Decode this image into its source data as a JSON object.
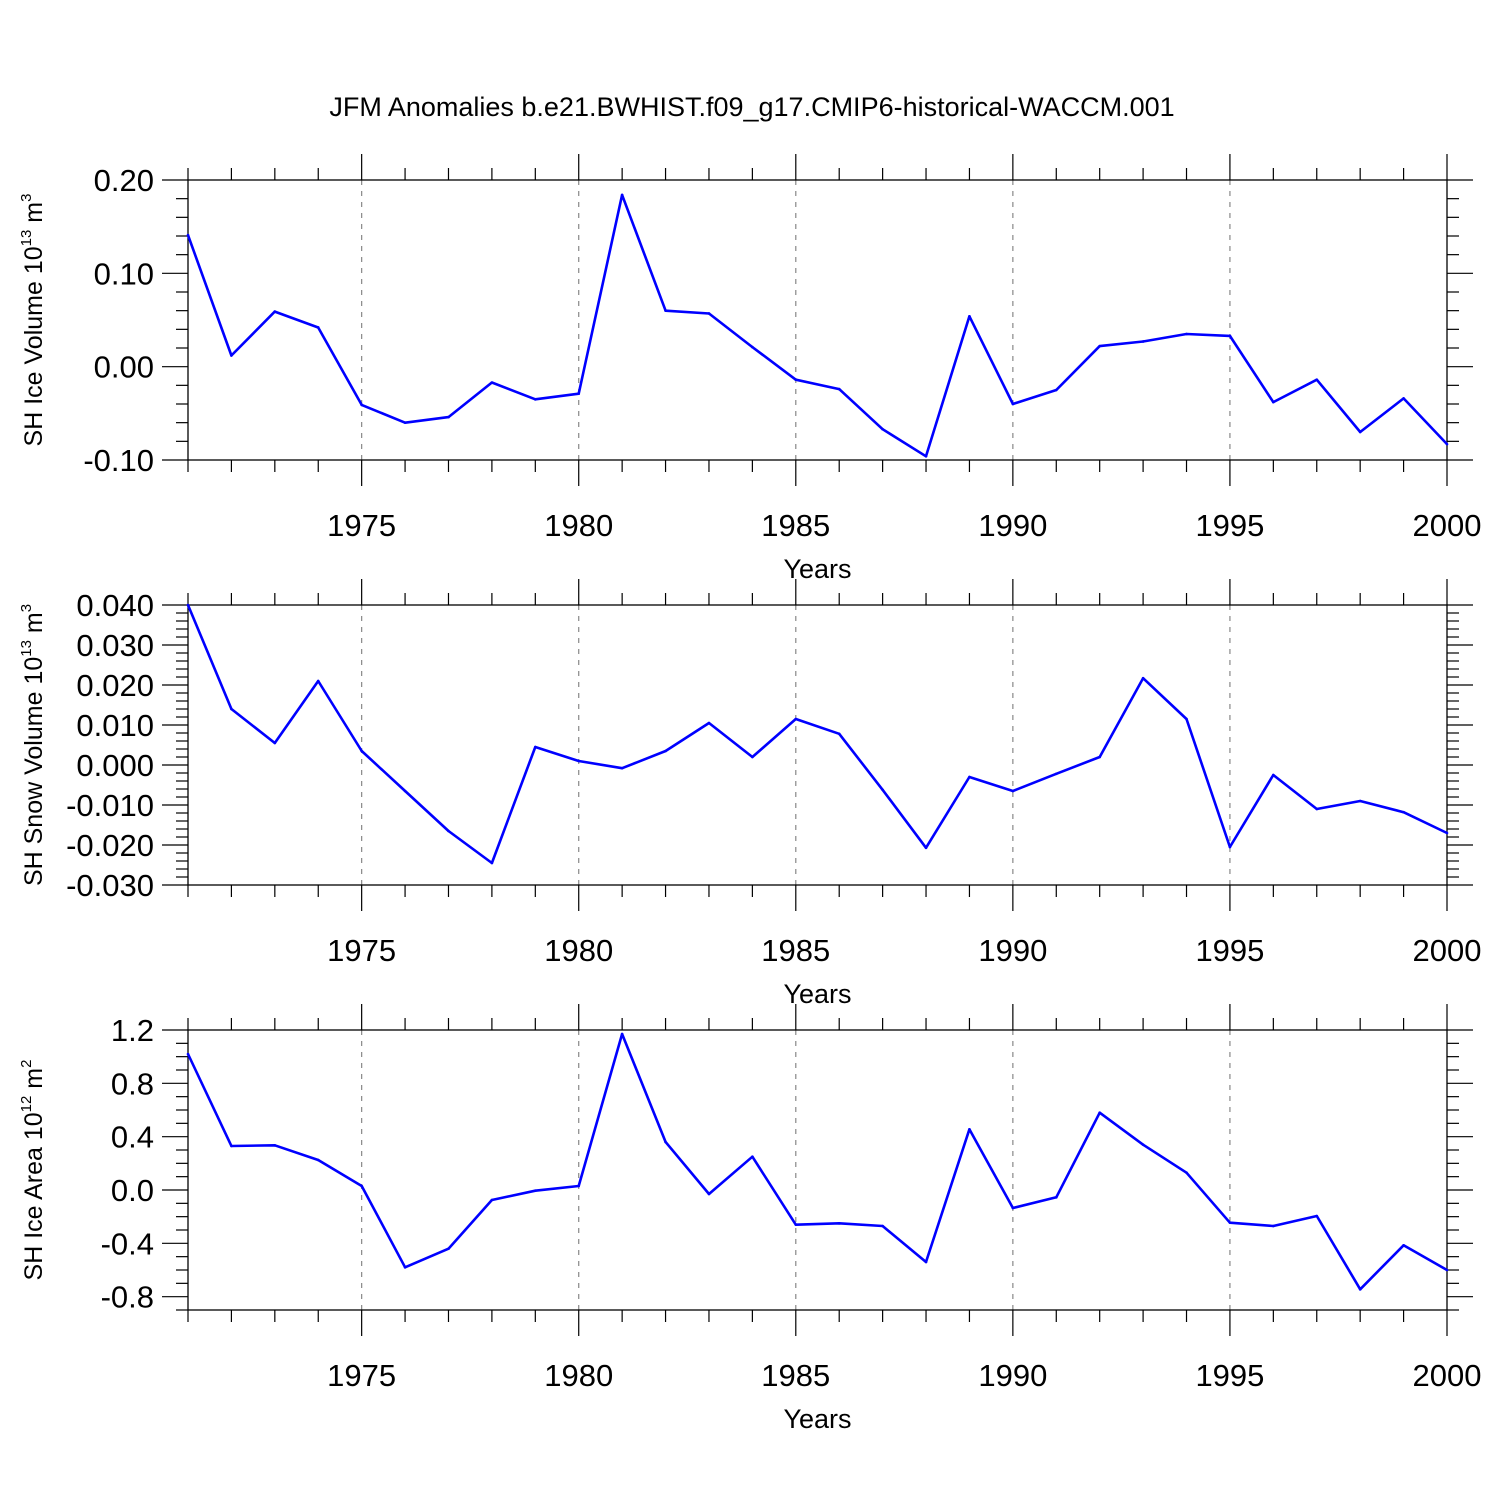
{
  "title": "JFM Anomalies b.e21.BWHIST.f09_g17.CMIP6-historical-WACCM.001",
  "colors": {
    "series": "#0000ff",
    "axis": "#000000",
    "grid": "#888888"
  },
  "chart_data": [
    {
      "type": "line",
      "name": "sh-ice-volume",
      "ylabel": {
        "prefix": "SH Ice Volume 10",
        "exp": "13",
        "unit": " m",
        "unit_exp": "3"
      },
      "xlabel": "Years",
      "xlim": [
        1971,
        2000
      ],
      "xticks": [
        1975,
        1980,
        1985,
        1990,
        1995,
        2000
      ],
      "xtick_labels": [
        "1975",
        "1980",
        "1985",
        "1990",
        "1995",
        "2000"
      ],
      "ylim": [
        -0.1,
        0.2
      ],
      "yticks": [
        -0.1,
        0.0,
        0.1,
        0.2
      ],
      "ytick_labels": [
        "-0.10",
        "0.00",
        "0.10",
        "0.20"
      ],
      "y_minor_step": 0.02,
      "x": [
        1971,
        1972,
        1973,
        1974,
        1975,
        1976,
        1977,
        1978,
        1979,
        1980,
        1981,
        1982,
        1983,
        1984,
        1985,
        1986,
        1987,
        1988,
        1989,
        1990,
        1991,
        1992,
        1993,
        1994,
        1995,
        1996,
        1997,
        1998,
        1999,
        2000
      ],
      "y": [
        0.141,
        0.012,
        0.059,
        0.042,
        -0.041,
        -0.06,
        -0.054,
        -0.017,
        -0.035,
        -0.029,
        0.184,
        0.06,
        0.057,
        0.021,
        -0.014,
        -0.024,
        -0.067,
        -0.096,
        0.054,
        -0.04,
        -0.025,
        0.022,
        0.027,
        0.035,
        0.033,
        -0.038,
        -0.014,
        -0.07,
        -0.034,
        -0.083
      ]
    },
    {
      "type": "line",
      "name": "sh-snow-volume",
      "ylabel": {
        "prefix": "SH Snow Volume 10",
        "exp": "13",
        "unit": " m",
        "unit_exp": "3"
      },
      "xlabel": "Years",
      "xlim": [
        1971,
        2000
      ],
      "xticks": [
        1975,
        1980,
        1985,
        1990,
        1995,
        2000
      ],
      "xtick_labels": [
        "1975",
        "1980",
        "1985",
        "1990",
        "1995",
        "2000"
      ],
      "ylim": [
        -0.03,
        0.04
      ],
      "yticks": [
        -0.03,
        -0.02,
        -0.01,
        0.0,
        0.01,
        0.02,
        0.03,
        0.04
      ],
      "ytick_labels": [
        "-0.030",
        "-0.020",
        "-0.010",
        "0.000",
        "0.010",
        "0.020",
        "0.030",
        "0.040"
      ],
      "y_minor_step": 0.002,
      "x": [
        1971,
        1972,
        1973,
        1974,
        1975,
        1976,
        1977,
        1978,
        1979,
        1980,
        1981,
        1982,
        1983,
        1984,
        1985,
        1986,
        1987,
        1988,
        1989,
        1990,
        1991,
        1992,
        1993,
        1994,
        1995,
        1996,
        1997,
        1998,
        1999,
        2000
      ],
      "y": [
        0.04,
        0.014,
        0.0055,
        0.021,
        0.0035,
        -0.0065,
        -0.0165,
        -0.0245,
        0.0045,
        0.001,
        -0.0008,
        0.0035,
        0.0105,
        0.002,
        0.0115,
        0.0078,
        -0.0062,
        -0.0207,
        -0.003,
        -0.0065,
        -0.0022,
        0.002,
        0.0217,
        0.0115,
        -0.0205,
        -0.0025,
        -0.011,
        -0.009,
        -0.0118,
        -0.017
      ]
    },
    {
      "type": "line",
      "name": "sh-ice-area",
      "ylabel": {
        "prefix": "SH Ice Area 10",
        "exp": "12",
        "unit": " m",
        "unit_exp": "2"
      },
      "xlabel": "Years",
      "xlim": [
        1971,
        2000
      ],
      "xticks": [
        1975,
        1980,
        1985,
        1990,
        1995,
        2000
      ],
      "xtick_labels": [
        "1975",
        "1980",
        "1985",
        "1990",
        "1995",
        "2000"
      ],
      "ylim": [
        -0.9,
        1.2
      ],
      "yticks": [
        -0.8,
        -0.4,
        0.0,
        0.4,
        0.8,
        1.2
      ],
      "ytick_labels": [
        "-0.8",
        "-0.4",
        "0.0",
        "0.4",
        "0.8",
        "1.2"
      ],
      "y_minor_step": 0.1,
      "x": [
        1971,
        1972,
        1973,
        1974,
        1975,
        1976,
        1977,
        1978,
        1979,
        1980,
        1981,
        1982,
        1983,
        1984,
        1985,
        1986,
        1987,
        1988,
        1989,
        1990,
        1991,
        1992,
        1993,
        1994,
        1995,
        1996,
        1997,
        1998,
        1999,
        2000
      ],
      "y": [
        1.02,
        0.33,
        0.335,
        0.225,
        0.03,
        -0.58,
        -0.44,
        -0.075,
        -0.005,
        0.03,
        1.17,
        0.36,
        -0.03,
        0.25,
        -0.26,
        -0.25,
        -0.27,
        -0.54,
        0.455,
        -0.135,
        -0.055,
        0.58,
        0.34,
        0.13,
        -0.245,
        -0.27,
        -0.195,
        -0.745,
        -0.415,
        -0.6
      ]
    }
  ]
}
